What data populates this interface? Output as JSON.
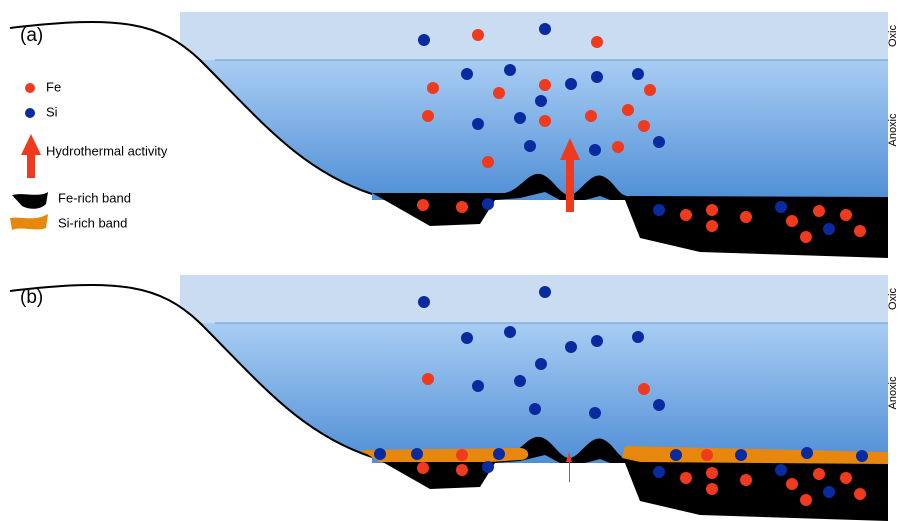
{
  "panels": [
    {
      "label": "(a)",
      "zones": {
        "upper": "Oxic",
        "lower": "Anoxic"
      }
    },
    {
      "label": "(b)",
      "zones": {
        "upper": "Oxic",
        "lower": "Anoxic"
      }
    }
  ],
  "legend": {
    "fe": "Fe",
    "si": "Si",
    "hydrothermal": "Hydrothermal activity",
    "fe_band": "Fe-rich band",
    "si_band": "Si-rich band"
  }
}
